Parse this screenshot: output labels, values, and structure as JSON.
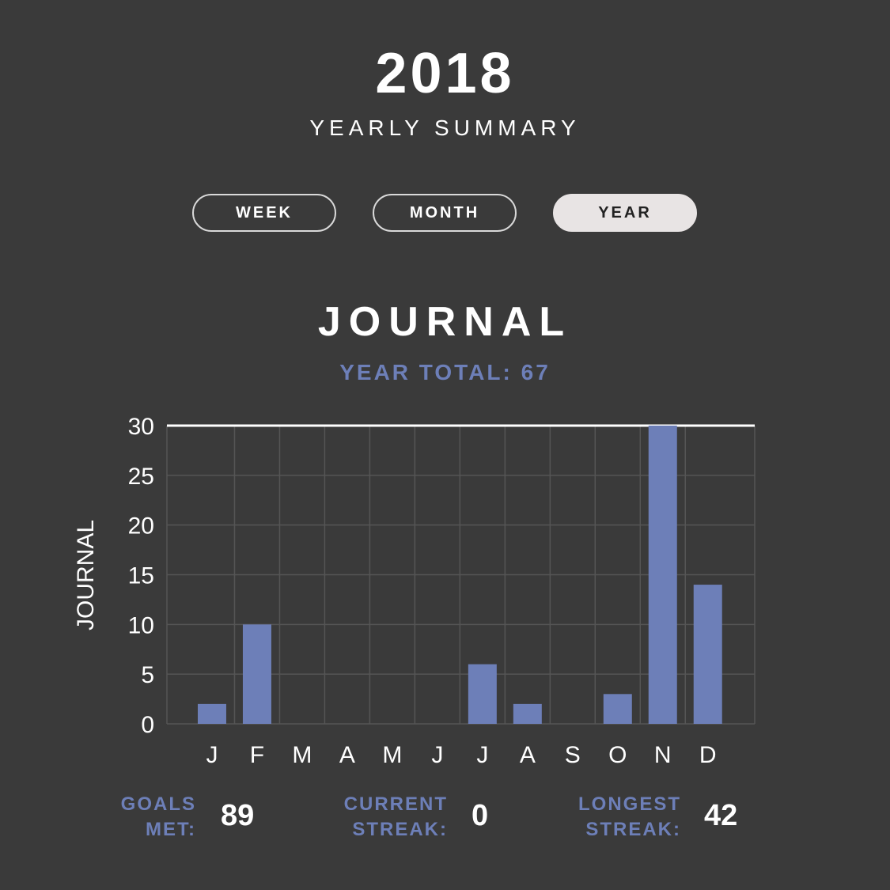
{
  "header": {
    "year": "2018",
    "subtitle": "YEARLY SUMMARY"
  },
  "tabs": [
    {
      "label": "WEEK",
      "active": false
    },
    {
      "label": "MONTH",
      "active": false
    },
    {
      "label": "YEAR",
      "active": true
    }
  ],
  "section": {
    "title": "JOURNAL",
    "total_label": "YEAR TOTAL: 67"
  },
  "stats": {
    "goals_met": {
      "label_line1": "GOALS",
      "label_line2": "MET:",
      "value": "89"
    },
    "current_streak": {
      "label_line1": "CURRENT",
      "label_line2": "STREAK:",
      "value": "0"
    },
    "longest_streak": {
      "label_line1": "LONGEST",
      "label_line2": "STREAK:",
      "value": "42"
    }
  },
  "colors": {
    "background": "#3a3a3a",
    "accent": "#6d7fb8",
    "bar": "#6d7fb8",
    "grid": "#555555",
    "text": "#ffffff"
  },
  "chart_data": {
    "type": "bar",
    "categories": [
      "J",
      "F",
      "M",
      "A",
      "M",
      "J",
      "J",
      "A",
      "S",
      "O",
      "N",
      "D"
    ],
    "values": [
      2,
      10,
      0,
      0,
      0,
      0,
      6,
      2,
      0,
      3,
      30,
      14
    ],
    "ylabel": "JOURNAL",
    "ylim": [
      0,
      30
    ],
    "yticks": [
      0,
      5,
      10,
      15,
      20,
      25,
      30
    ],
    "grid": true
  }
}
